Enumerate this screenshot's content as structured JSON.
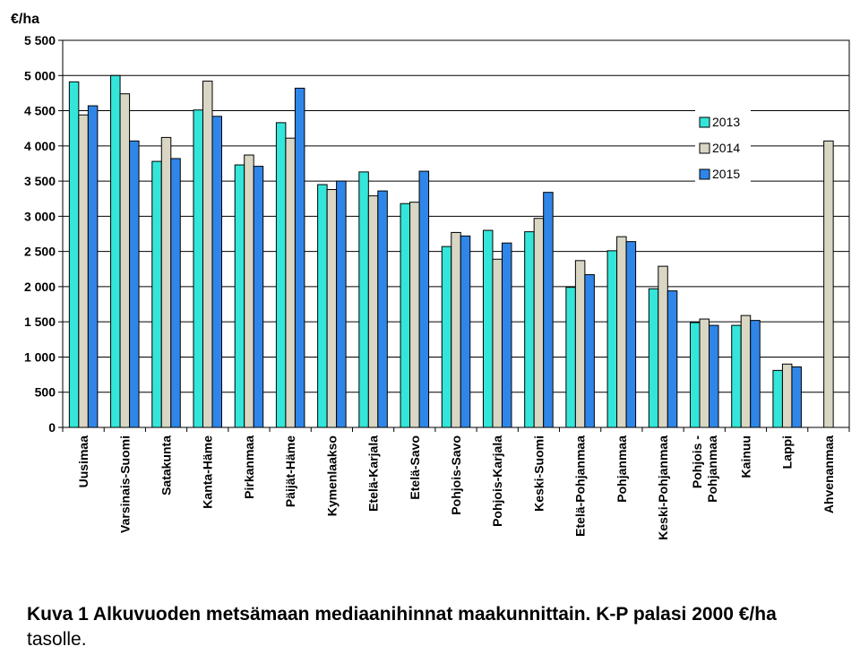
{
  "chart_data": {
    "type": "bar",
    "ylabel": "€/ha",
    "ylim": [
      0,
      5500
    ],
    "yticks": [
      0,
      500,
      1000,
      1500,
      2000,
      2500,
      3000,
      3500,
      4000,
      4500,
      5000,
      5500
    ],
    "ytick_labels": [
      "0",
      "500",
      "1 000",
      "1 500",
      "2 000",
      "2 500",
      "3 000",
      "3 500",
      "4 000",
      "4 500",
      "5 000",
      "5 500"
    ],
    "grid": true,
    "legend_position": "right",
    "categories": [
      "Uusimaa",
      "Varsinais-Suomi",
      "Satakunta",
      "Kanta-Häme",
      "Pirkanmaa",
      "Päijät-Häme",
      "Kymenlaakso",
      "Etelä-Karjala",
      "Etelä-Savo",
      "Pohjois-Savo",
      "Pohjois-Karjala",
      "Keski-Suomi",
      "Etelä-Pohjanmaa",
      "Pohjanmaa",
      "Keski-Pohjanmaa",
      "Pohjois-Pohjanmaa",
      "Kainuu",
      "Lappi",
      "Ahvenanmaa"
    ],
    "category_label_lines": [
      [
        "Uusimaa"
      ],
      [
        "Varsinais-Suomi"
      ],
      [
        "Satakunta"
      ],
      [
        "Kanta-Häme"
      ],
      [
        "Pirkanmaa"
      ],
      [
        "Päijät-Häme"
      ],
      [
        "Kymenlaakso"
      ],
      [
        "Etelä-Karjala"
      ],
      [
        "Etelä-Savo"
      ],
      [
        "Pohjois-Savo"
      ],
      [
        "Pohjois-Karjala"
      ],
      [
        "Keski-Suomi"
      ],
      [
        "Etelä-Pohjanmaa"
      ],
      [
        "Pohjanmaa"
      ],
      [
        "Keski-Pohjanmaa"
      ],
      [
        "Pohjois -",
        "Pohjanmaa"
      ],
      [
        "Kainuu"
      ],
      [
        "Lappi"
      ],
      [
        "Ahvenanmaa"
      ]
    ],
    "series": [
      {
        "name": "2013",
        "color": "#33e6d9",
        "values": [
          4910,
          5000,
          3780,
          4510,
          3730,
          4330,
          3450,
          3630,
          3180,
          2570,
          2800,
          2780,
          1990,
          2510,
          1970,
          1490,
          1450,
          810,
          null
        ]
      },
      {
        "name": "2014",
        "color": "#d9d6c4",
        "values": [
          4440,
          4740,
          4120,
          4920,
          3870,
          4110,
          3380,
          3290,
          3200,
          2770,
          2390,
          2970,
          2370,
          2710,
          2290,
          1540,
          1590,
          900,
          4070
        ]
      },
      {
        "name": "2015",
        "color": "#2f86e8",
        "values": [
          4570,
          4070,
          3820,
          4420,
          3710,
          4820,
          3500,
          3360,
          3640,
          2720,
          2620,
          3340,
          2170,
          2640,
          1940,
          1450,
          1520,
          860,
          null
        ]
      }
    ]
  },
  "caption": {
    "bold": "Kuva 1 Alkuvuoden metsämaan  mediaanihinnat maakunnittain.   K-P palasi 2000 €/ha",
    "tail": "tasolle."
  }
}
